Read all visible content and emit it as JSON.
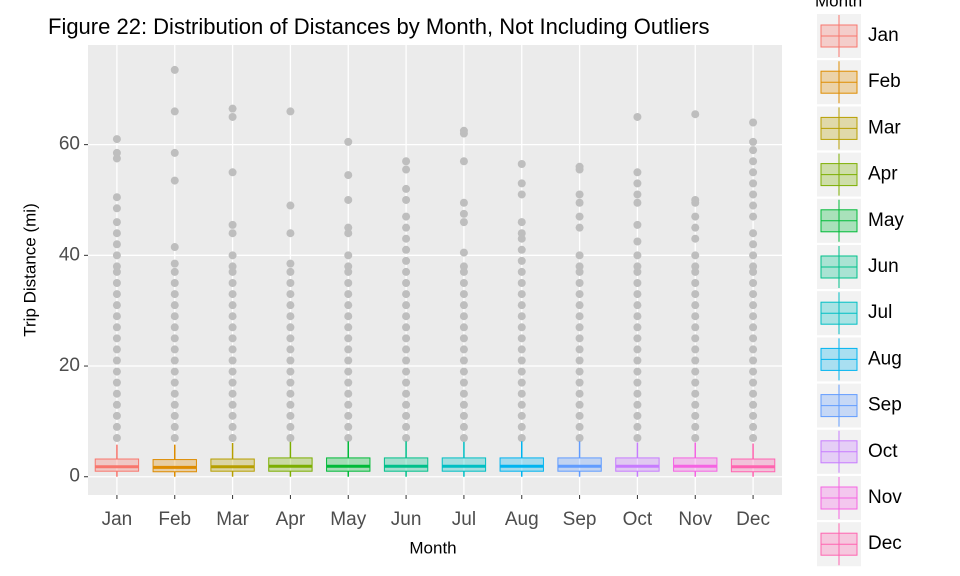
{
  "chart_data": {
    "type": "box",
    "title": "Figure 22: Distribution of Distances by Month, Not Including Outliers",
    "x_label": "Month",
    "y_label": "Trip Distance (mi)",
    "legend_title": "Month",
    "ylim": [
      -3.3,
      78
    ],
    "yticks": [
      0,
      20,
      40,
      60
    ],
    "grid": true,
    "outlier_color": "#bebebe",
    "categories": [
      "Jan",
      "Feb",
      "Mar",
      "Apr",
      "May",
      "Jun",
      "Jul",
      "Aug",
      "Sep",
      "Oct",
      "Nov",
      "Dec"
    ],
    "series": [
      {
        "name": "Jan",
        "color": "#F8766D",
        "whisker_low": 0,
        "q1": 1.0,
        "median": 1.8,
        "q3": 3.2,
        "whisker_high": 5.8,
        "outliers": [
          7,
          9,
          11,
          13,
          15,
          17,
          19,
          21,
          23,
          25,
          27,
          29,
          31,
          33,
          35,
          37,
          38,
          40,
          42,
          44,
          46,
          48.5,
          50.5,
          57.5,
          58.5,
          61
        ]
      },
      {
        "name": "Feb",
        "color": "#DE8C00",
        "whisker_low": 0,
        "q1": 0.9,
        "median": 1.7,
        "q3": 3.1,
        "whisker_high": 5.8,
        "outliers": [
          7,
          9,
          11,
          13,
          15,
          17,
          19,
          21,
          23,
          25,
          27,
          29,
          31,
          33,
          35,
          37,
          38.5,
          41.5,
          53.5,
          58.5,
          66,
          73.5
        ]
      },
      {
        "name": "Mar",
        "color": "#B79F00",
        "whisker_low": 0,
        "q1": 1.0,
        "median": 1.8,
        "q3": 3.2,
        "whisker_high": 6.1,
        "outliers": [
          7,
          9,
          11,
          13,
          15,
          17,
          19,
          21,
          23,
          25,
          27,
          29,
          31,
          33,
          35,
          37,
          38,
          40,
          44,
          45.5,
          55,
          65,
          66.5
        ]
      },
      {
        "name": "Apr",
        "color": "#7CAE00",
        "whisker_low": 0,
        "q1": 1.0,
        "median": 1.9,
        "q3": 3.4,
        "whisker_high": 6.3,
        "outliers": [
          7,
          9,
          11,
          13,
          15,
          17,
          19,
          21,
          23,
          25,
          27,
          29,
          31,
          33,
          35,
          37,
          38.5,
          44,
          49,
          66
        ]
      },
      {
        "name": "May",
        "color": "#00BA38",
        "whisker_low": 0,
        "q1": 1.0,
        "median": 1.9,
        "q3": 3.4,
        "whisker_high": 6.4,
        "outliers": [
          7,
          9,
          11,
          13,
          15,
          17,
          19,
          21,
          23,
          25,
          27,
          29,
          31,
          33,
          35,
          37,
          38,
          40,
          44,
          45,
          50,
          54.5,
          60.5
        ]
      },
      {
        "name": "Jun",
        "color": "#00C08B",
        "whisker_low": 0,
        "q1": 1.0,
        "median": 1.9,
        "q3": 3.4,
        "whisker_high": 6.4,
        "outliers": [
          7,
          9,
          11,
          13,
          15,
          17,
          19,
          21,
          23,
          25,
          27,
          29,
          31,
          33,
          35,
          37,
          39,
          41,
          43,
          45,
          47,
          50,
          52,
          55.5,
          57
        ]
      },
      {
        "name": "Jul",
        "color": "#00BFC4",
        "whisker_low": 0,
        "q1": 1.0,
        "median": 1.9,
        "q3": 3.4,
        "whisker_high": 6.3,
        "outliers": [
          7,
          9,
          11,
          13,
          15,
          17,
          19,
          21,
          23,
          25,
          27,
          29,
          31,
          33,
          35,
          37,
          38,
          40.5,
          46,
          47.5,
          49.5,
          57,
          62,
          62.5
        ]
      },
      {
        "name": "Aug",
        "color": "#00B4F0",
        "whisker_low": 0,
        "q1": 1.0,
        "median": 1.9,
        "q3": 3.4,
        "whisker_high": 6.4,
        "outliers": [
          7,
          9,
          11,
          13,
          15,
          17,
          19,
          21,
          23,
          25,
          27,
          29,
          31,
          33,
          35,
          37,
          39,
          41,
          43,
          44,
          46,
          51,
          53,
          56.5
        ]
      },
      {
        "name": "Sep",
        "color": "#619CFF",
        "whisker_low": 0,
        "q1": 1.0,
        "median": 1.9,
        "q3": 3.4,
        "whisker_high": 6.4,
        "outliers": [
          7,
          9,
          11,
          13,
          15,
          17,
          19,
          21,
          23,
          25,
          27,
          29,
          31,
          33,
          35,
          37,
          38,
          40,
          45,
          47,
          49.5,
          51,
          55.5,
          56
        ]
      },
      {
        "name": "Oct",
        "color": "#C77CFF",
        "whisker_low": 0,
        "q1": 1.0,
        "median": 1.9,
        "q3": 3.4,
        "whisker_high": 6.2,
        "outliers": [
          7,
          9,
          11,
          13,
          15,
          17,
          19,
          21,
          23,
          25,
          27,
          29,
          31,
          33,
          35,
          37,
          38,
          40,
          42.5,
          45.5,
          49.5,
          51,
          53,
          55,
          65
        ]
      },
      {
        "name": "Nov",
        "color": "#F564E3",
        "whisker_low": 0,
        "q1": 1.0,
        "median": 1.9,
        "q3": 3.4,
        "whisker_high": 6.2,
        "outliers": [
          7,
          9,
          11,
          13,
          15,
          17,
          19,
          21,
          23,
          25,
          27,
          29,
          31,
          33,
          35,
          37,
          38,
          40,
          43,
          45,
          47,
          49.5,
          50,
          65.5
        ]
      },
      {
        "name": "Dec",
        "color": "#FF64B0",
        "whisker_low": 0,
        "q1": 0.9,
        "median": 1.8,
        "q3": 3.2,
        "whisker_high": 6.0,
        "outliers": [
          7,
          9,
          11,
          13,
          15,
          17,
          19,
          21,
          23,
          25,
          27,
          29,
          31,
          33,
          35,
          37,
          38,
          40,
          42,
          44,
          47,
          49,
          51,
          53,
          55,
          57,
          59,
          60.5,
          64
        ]
      }
    ]
  }
}
